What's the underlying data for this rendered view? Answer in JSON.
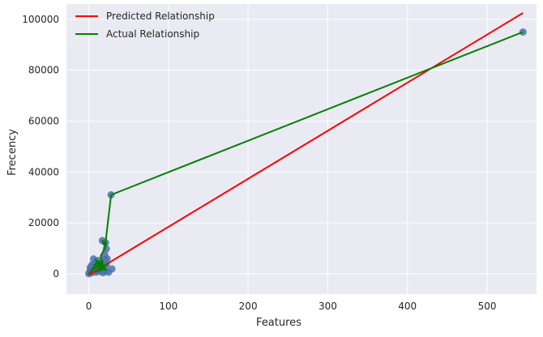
{
  "chart_data": {
    "type": "line",
    "title": "",
    "xlabel": "Features",
    "ylabel": "Frecency",
    "xlim": [
      -28,
      562
    ],
    "ylim": [
      -8000,
      106000
    ],
    "xticks": [
      0,
      100,
      200,
      300,
      400,
      500
    ],
    "yticks": [
      0,
      20000,
      40000,
      60000,
      80000,
      100000
    ],
    "grid": true,
    "background": "#EAEAF2",
    "grid_color": "#FFFFFF",
    "legend_position": "top-left",
    "points": {
      "color": "#4C72B0",
      "x": [
        0,
        1,
        2,
        2,
        3,
        4,
        5,
        6,
        7,
        8,
        8,
        9,
        10,
        11,
        12,
        13,
        14,
        15,
        16,
        17,
        18,
        19,
        20,
        21,
        22,
        23,
        25,
        29,
        17,
        21,
        22,
        20,
        28,
        545
      ],
      "y": [
        0,
        600,
        1500,
        2500,
        300,
        3500,
        800,
        5800,
        2000,
        1200,
        4200,
        600,
        3000,
        1800,
        5200,
        2400,
        900,
        4000,
        1500,
        3600,
        400,
        2800,
        5600,
        1000,
        3400,
        5900,
        600,
        1900,
        13000,
        12200,
        9800,
        7500,
        31000,
        95000
      ]
    },
    "series": [
      {
        "name": "Predicted Relationship",
        "color": "#FF0000",
        "x": [
          0,
          545
        ],
        "y": [
          -500,
          102500
        ]
      },
      {
        "name": "Actual Relationship",
        "color": "#008000",
        "x": [
          0,
          6,
          3,
          10,
          5,
          14,
          8,
          20,
          11,
          16,
          7,
          22,
          13,
          19,
          9,
          24,
          12,
          17,
          18,
          15,
          21,
          17,
          22,
          20,
          28,
          545
        ],
        "y": [
          0,
          2400,
          800,
          4600,
          1600,
          3200,
          5800,
          2000,
          900,
          4200,
          3600,
          1400,
          5000,
          2600,
          700,
          3800,
          1800,
          5400,
          2200,
          7000,
          10500,
          13000,
          12000,
          9500,
          31000,
          95000
        ]
      }
    ]
  }
}
